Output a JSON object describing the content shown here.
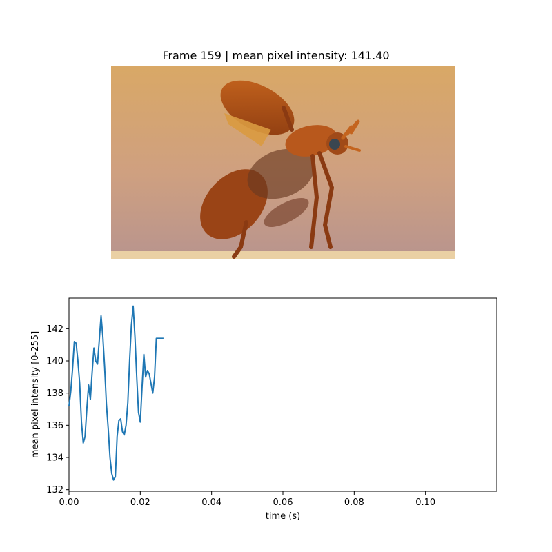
{
  "figure": {
    "title": "Frame 159 | mean pixel intensity: 141.40"
  },
  "frame_image": {
    "description_icon": "beetle-photo",
    "colors": {
      "background_top": "#d8a766",
      "background_bottom": "#c0988c",
      "beetle_body": "#b4561c",
      "beetle_dark": "#6a2a0c",
      "surface": "#e8c898"
    }
  },
  "chart_data": {
    "type": "line",
    "title": "",
    "xlabel": "time (s)",
    "ylabel": "mean pixel intensity [0-255]",
    "xlim": [
      0.0,
      0.12
    ],
    "ylim": [
      131.9,
      143.9
    ],
    "xticks": [
      0.0,
      0.02,
      0.04,
      0.06,
      0.08,
      0.1
    ],
    "xtick_labels": [
      "0.00",
      "0.02",
      "0.04",
      "0.06",
      "0.08",
      "0.10"
    ],
    "yticks": [
      132,
      134,
      136,
      138,
      140,
      142
    ],
    "ytick_labels": [
      "132",
      "134",
      "136",
      "138",
      "140",
      "142"
    ],
    "grid": false,
    "series": [
      {
        "color": "#1f77b4",
        "x": [
          0.0,
          0.0005,
          0.001,
          0.0015,
          0.002,
          0.0025,
          0.003,
          0.0035,
          0.004,
          0.0045,
          0.005,
          0.0055,
          0.006,
          0.0065,
          0.007,
          0.0075,
          0.008,
          0.0085,
          0.009,
          0.0095,
          0.01,
          0.0105,
          0.011,
          0.0115,
          0.012,
          0.0125,
          0.013,
          0.0135,
          0.014,
          0.0145,
          0.015,
          0.0155,
          0.016,
          0.0165,
          0.017,
          0.0175,
          0.018,
          0.0185,
          0.019,
          0.0195,
          0.02,
          0.0205,
          0.021,
          0.0215,
          0.022,
          0.0225,
          0.023,
          0.0235,
          0.024,
          0.0245,
          0.025,
          0.0255,
          0.026,
          0.0265
        ],
        "y": [
          137.2,
          138.1,
          139.5,
          141.2,
          141.1,
          140.0,
          138.6,
          136.2,
          134.9,
          135.3,
          137.0,
          138.5,
          137.6,
          139.3,
          140.8,
          140.0,
          139.8,
          141.3,
          142.8,
          141.5,
          139.6,
          137.3,
          135.8,
          134.0,
          133.0,
          132.6,
          132.8,
          135.3,
          136.3,
          136.4,
          135.6,
          135.4,
          136.0,
          137.4,
          140.0,
          142.2,
          143.4,
          141.5,
          139.0,
          136.8,
          136.2,
          138.4,
          140.4,
          139.0,
          139.4,
          139.2,
          138.6,
          138.0,
          139.0,
          141.4,
          141.4,
          141.4,
          141.4,
          141.4
        ]
      }
    ]
  }
}
